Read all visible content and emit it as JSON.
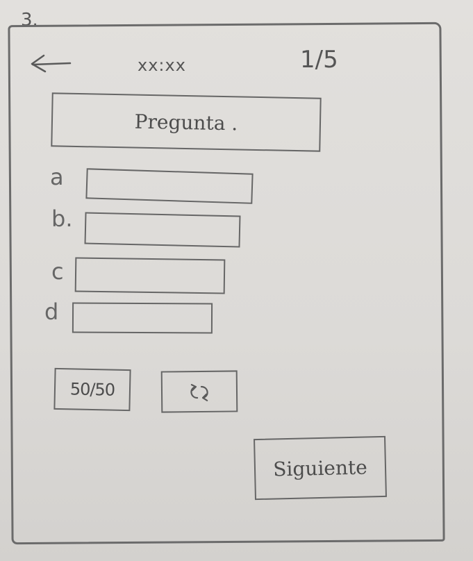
{
  "sheet": {
    "number": "3."
  },
  "header": {
    "timer": "xx:xx",
    "progress": "1/5"
  },
  "question": {
    "text": "Pregunta ."
  },
  "options": [
    {
      "letter": "a"
    },
    {
      "letter": "b."
    },
    {
      "letter": "c"
    },
    {
      "letter": "d"
    }
  ],
  "lifelines": {
    "fifty_fifty": "50/50",
    "swap_icon": "swap-arrows-icon"
  },
  "footer": {
    "next_label": "Siguiente"
  },
  "icons": {
    "back": "back-arrow-icon"
  }
}
